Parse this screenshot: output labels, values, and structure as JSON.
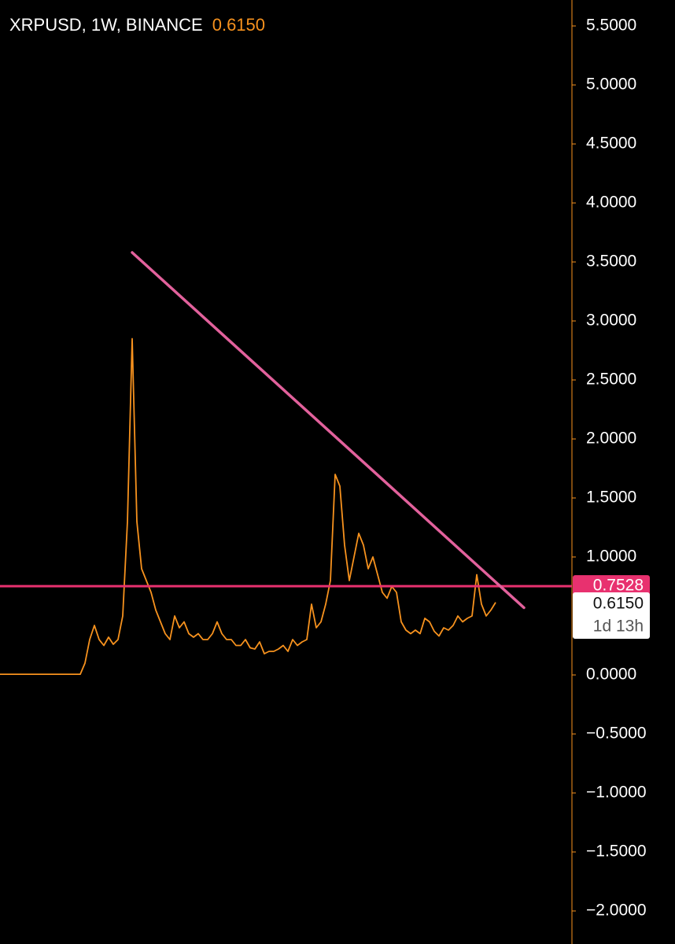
{
  "chart_data": {
    "type": "line",
    "symbol": "XRPUSD, 1W, BINANCE",
    "last_price": {
      "value": 0.615,
      "label": "0.6150"
    },
    "countdown": "1d 13h",
    "series": [
      {
        "name": "XRPUSD",
        "color": "#f7921e",
        "values": [
          0.006,
          0.006,
          0.006,
          0.006,
          0.006,
          0.006,
          0.006,
          0.006,
          0.006,
          0.006,
          0.006,
          0.006,
          0.006,
          0.006,
          0.006,
          0.006,
          0.006,
          0.006,
          0.1,
          0.3,
          0.42,
          0.3,
          0.25,
          0.32,
          0.26,
          0.3,
          0.5,
          1.3,
          2.85,
          1.3,
          0.9,
          0.8,
          0.7,
          0.55,
          0.45,
          0.35,
          0.3,
          0.5,
          0.4,
          0.45,
          0.35,
          0.32,
          0.35,
          0.3,
          0.3,
          0.35,
          0.45,
          0.35,
          0.3,
          0.3,
          0.25,
          0.25,
          0.3,
          0.23,
          0.22,
          0.28,
          0.18,
          0.2,
          0.2,
          0.22,
          0.25,
          0.2,
          0.3,
          0.25,
          0.28,
          0.3,
          0.6,
          0.4,
          0.45,
          0.6,
          0.8,
          1.7,
          1.6,
          1.1,
          0.8,
          1.0,
          1.2,
          1.1,
          0.9,
          1.0,
          0.85,
          0.7,
          0.65,
          0.75,
          0.7,
          0.45,
          0.38,
          0.35,
          0.38,
          0.35,
          0.48,
          0.45,
          0.37,
          0.33,
          0.4,
          0.38,
          0.42,
          0.5,
          0.45,
          0.48,
          0.5,
          0.85,
          0.6,
          0.5,
          0.55,
          0.615
        ]
      }
    ],
    "trendline": {
      "color": "#e2619c",
      "points": [
        {
          "x": 28,
          "y": 3.58
        },
        {
          "x": 111,
          "y": 0.57
        }
      ]
    },
    "hline": {
      "value": 0.7528,
      "color": "#e8316f"
    },
    "ylim": [
      -2.28,
      5.72
    ],
    "yticks": [
      {
        "value": 5.5,
        "label": "5.5000"
      },
      {
        "value": 5,
        "label": "5.0000"
      },
      {
        "value": 4.5,
        "label": "4.5000"
      },
      {
        "value": 4,
        "label": "4.0000"
      },
      {
        "value": 3.5,
        "label": "3.5000"
      },
      {
        "value": 3,
        "label": "3.0000"
      },
      {
        "value": 2.5,
        "label": "2.5000"
      },
      {
        "value": 2,
        "label": "2.0000"
      },
      {
        "value": 1.5,
        "label": "1.5000"
      },
      {
        "value": 1,
        "label": "1.0000"
      },
      {
        "value": 0,
        "label": "0.0000"
      },
      {
        "value": -0.5,
        "label": "−0.5000"
      },
      {
        "value": -1,
        "label": "−1.0000"
      },
      {
        "value": -1.5,
        "label": "−1.5000"
      },
      {
        "value": -2,
        "label": "−2.0000"
      }
    ],
    "grid": false,
    "axis_color": "#f7921e"
  }
}
